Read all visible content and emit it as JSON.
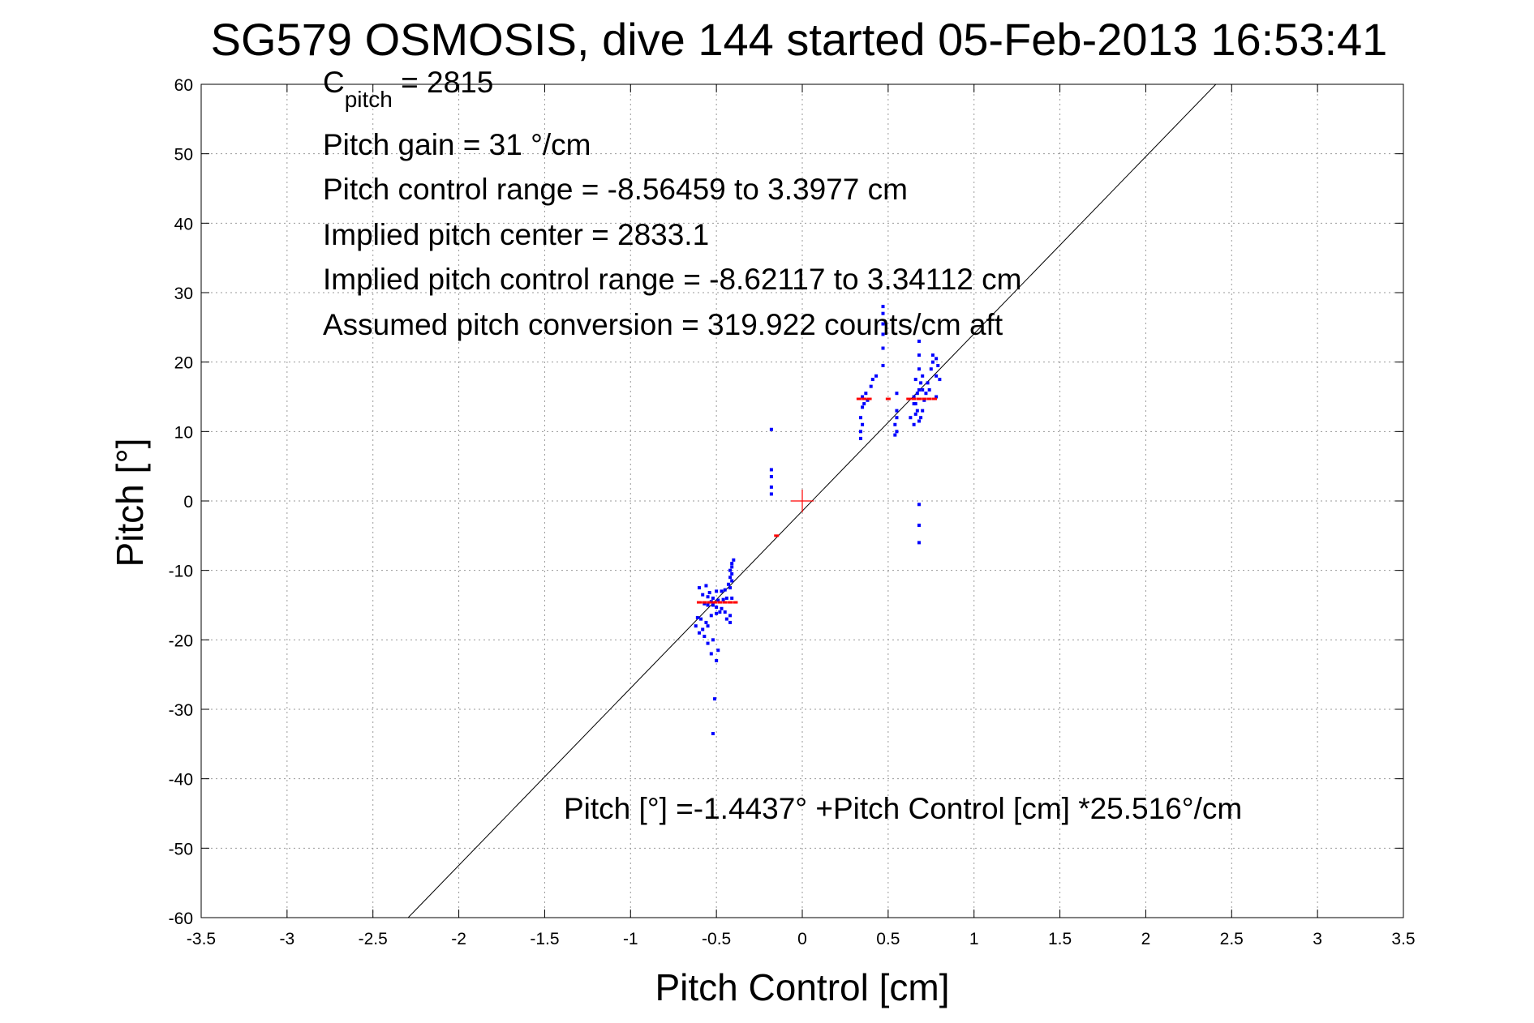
{
  "chart_data": {
    "type": "scatter",
    "title": "SG579 OSMOSIS, dive 144 started 05-Feb-2013 16:53:41",
    "xlabel": "Pitch Control [cm]",
    "ylabel": "Pitch [°]",
    "xlim": [
      -3.5,
      3.5
    ],
    "ylim": [
      -60,
      60
    ],
    "xticks": [
      -3.5,
      -3,
      -2.5,
      -2,
      -1.5,
      -1,
      -0.5,
      0,
      0.5,
      1,
      1.5,
      2,
      2.5,
      3,
      3.5
    ],
    "xtick_labels": [
      "-3.5",
      "-3",
      "-2.5",
      "-2",
      "-1.5",
      "-1",
      "-0.5",
      "0",
      "0.5",
      "1",
      "1.5",
      "2",
      "2.5",
      "3",
      "3.5"
    ],
    "yticks": [
      -60,
      -50,
      -40,
      -30,
      -20,
      -10,
      0,
      10,
      20,
      30,
      40,
      50,
      60
    ],
    "ytick_labels": [
      "-60",
      "-50",
      "-40",
      "-30",
      "-20",
      "-10",
      "0",
      "10",
      "20",
      "30",
      "40",
      "50",
      "60"
    ],
    "grid": true,
    "annotations": {
      "c_pitch_main": "C",
      "c_pitch_sub": "pitch",
      "c_pitch_value": " = 2815",
      "pitch_gain": "Pitch gain = 31 °/cm",
      "control_range": "Pitch control range = -8.56459 to 3.3977 cm",
      "implied_center": "Implied pitch center = 2833.1",
      "implied_range": "Implied pitch control range = -8.62117 to 3.34112 cm",
      "conversion": "Assumed pitch conversion = 319.922 counts/cm aft",
      "fit_equation": "Pitch [°] =-1.4437° +Pitch Control [cm] *25.516°/cm"
    },
    "fit_line": {
      "intercept": -1.4437,
      "slope": 25.516,
      "color": "#000000"
    },
    "origin_marker": {
      "x": 0,
      "y": 0,
      "color": "#ff0000"
    },
    "series": [
      {
        "color": "#0000ff",
        "marker": "dot",
        "points": [
          [
            -0.52,
            -33.5
          ],
          [
            -0.51,
            -28.5
          ],
          [
            -0.5,
            -23
          ],
          [
            -0.53,
            -22
          ],
          [
            -0.49,
            -21.5
          ],
          [
            -0.55,
            -20.5
          ],
          [
            -0.52,
            -20
          ],
          [
            -0.57,
            -19.5
          ],
          [
            -0.6,
            -19
          ],
          [
            -0.58,
            -18.5
          ],
          [
            -0.62,
            -18
          ],
          [
            -0.55,
            -18
          ],
          [
            -0.56,
            -17.5
          ],
          [
            -0.59,
            -17
          ],
          [
            -0.61,
            -16.8
          ],
          [
            -0.53,
            -16.5
          ],
          [
            -0.5,
            -16.2
          ],
          [
            -0.48,
            -16
          ],
          [
            -0.45,
            -16
          ],
          [
            -0.42,
            -16.5
          ],
          [
            -0.44,
            -17
          ],
          [
            -0.42,
            -17.5
          ],
          [
            -0.47,
            -15.5
          ],
          [
            -0.5,
            -15.3
          ],
          [
            -0.52,
            -15
          ],
          [
            -0.55,
            -15
          ],
          [
            -0.57,
            -14.8
          ],
          [
            -0.53,
            -14.5
          ],
          [
            -0.49,
            -14.3
          ],
          [
            -0.46,
            -14.2
          ],
          [
            -0.44,
            -14
          ],
          [
            -0.41,
            -14
          ],
          [
            -0.52,
            -14
          ],
          [
            -0.55,
            -13.8
          ],
          [
            -0.58,
            -13.5
          ],
          [
            -0.54,
            -13.2
          ],
          [
            -0.5,
            -13
          ],
          [
            -0.47,
            -13
          ],
          [
            -0.45,
            -12.8
          ],
          [
            -0.42,
            -12.5
          ],
          [
            -0.43,
            -12
          ],
          [
            -0.41,
            -11.5
          ],
          [
            -0.42,
            -11
          ],
          [
            -0.41,
            -10.5
          ],
          [
            -0.42,
            -10
          ],
          [
            -0.41,
            -9.5
          ],
          [
            -0.41,
            -9
          ],
          [
            -0.4,
            -8.5
          ],
          [
            -0.6,
            -12.5
          ],
          [
            -0.56,
            -12.2
          ],
          [
            -0.18,
            10.3
          ],
          [
            -0.18,
            4.5
          ],
          [
            -0.18,
            3.5
          ],
          [
            -0.18,
            2
          ],
          [
            -0.18,
            1
          ],
          [
            0.34,
            9
          ],
          [
            0.34,
            10
          ],
          [
            0.35,
            11
          ],
          [
            0.34,
            12
          ],
          [
            0.35,
            13.5
          ],
          [
            0.36,
            14
          ],
          [
            0.35,
            15
          ],
          [
            0.37,
            15.5
          ],
          [
            0.38,
            14.5
          ],
          [
            0.4,
            16.5
          ],
          [
            0.41,
            17.5
          ],
          [
            0.43,
            18
          ],
          [
            0.47,
            19.5
          ],
          [
            0.47,
            22
          ],
          [
            0.47,
            24
          ],
          [
            0.47,
            25.5
          ],
          [
            0.47,
            27
          ],
          [
            0.47,
            28
          ],
          [
            0.55,
            13
          ],
          [
            0.55,
            12
          ],
          [
            0.54,
            11
          ],
          [
            0.55,
            10
          ],
          [
            0.54,
            9.5
          ],
          [
            0.55,
            15.5
          ],
          [
            0.63,
            12
          ],
          [
            0.65,
            11
          ],
          [
            0.66,
            12.5
          ],
          [
            0.67,
            13
          ],
          [
            0.68,
            11.5
          ],
          [
            0.69,
            12
          ],
          [
            0.7,
            13
          ],
          [
            0.66,
            14
          ],
          [
            0.65,
            15
          ],
          [
            0.67,
            15.5
          ],
          [
            0.68,
            16
          ],
          [
            0.69,
            17
          ],
          [
            0.7,
            18
          ],
          [
            0.68,
            19
          ],
          [
            0.66,
            17.5
          ],
          [
            0.65,
            14
          ],
          [
            0.7,
            16
          ],
          [
            0.71,
            14.5
          ],
          [
            0.72,
            15.5
          ],
          [
            0.74,
            16
          ],
          [
            0.73,
            17
          ],
          [
            0.75,
            19
          ],
          [
            0.76,
            20
          ],
          [
            0.76,
            21
          ],
          [
            0.78,
            20.5
          ],
          [
            0.79,
            19.5
          ],
          [
            0.78,
            18
          ],
          [
            0.78,
            15
          ],
          [
            0.8,
            17.5
          ],
          [
            0.68,
            21
          ],
          [
            0.68,
            23
          ],
          [
            0.68,
            -0.5
          ],
          [
            0.68,
            -3.5
          ],
          [
            0.68,
            -6
          ]
        ]
      },
      {
        "color": "#ff0000",
        "marker": "tick",
        "points": [
          [
            -0.6,
            -14.6
          ],
          [
            -0.57,
            -14.6
          ],
          [
            -0.54,
            -14.6
          ],
          [
            -0.51,
            -14.6
          ],
          [
            -0.48,
            -14.6
          ],
          [
            -0.45,
            -14.6
          ],
          [
            -0.42,
            -14.6
          ],
          [
            -0.39,
            -14.6
          ],
          [
            -0.15,
            -5
          ],
          [
            0.33,
            14.7
          ],
          [
            0.36,
            14.7
          ],
          [
            0.39,
            14.7
          ],
          [
            0.5,
            14.7
          ],
          [
            0.62,
            14.7
          ],
          [
            0.65,
            14.7
          ],
          [
            0.68,
            14.7
          ],
          [
            0.71,
            14.7
          ],
          [
            0.74,
            14.7
          ],
          [
            0.77,
            14.7
          ]
        ]
      }
    ]
  }
}
